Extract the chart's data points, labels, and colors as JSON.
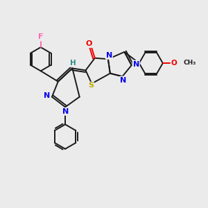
{
  "bg_color": "#ebebeb",
  "bond_color": "#1a1a1a",
  "atom_colors": {
    "N": "#0000ee",
    "O": "#ee0000",
    "S": "#bbaa00",
    "F": "#ff69b4",
    "H": "#2e8b8b",
    "C": "#1a1a1a"
  },
  "figsize": [
    3.0,
    3.0
  ],
  "dpi": 100
}
